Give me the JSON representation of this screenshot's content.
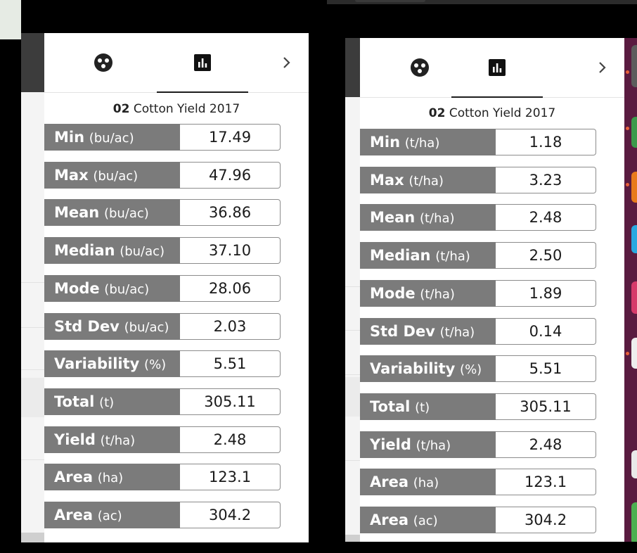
{
  "tabs": {
    "icon_left": "palette-icon",
    "icon_active": "bar-chart-icon",
    "icon_next": "chevron-right-icon"
  },
  "colors": {
    "label_bg": "#7b7b7b",
    "value_border": "#8c8c8c",
    "desktop_bg": "#5a1b40"
  },
  "panel1": {
    "title_num": "02",
    "title_text": "Cotton Yield 2017",
    "rows": [
      {
        "name": "Min",
        "unit": "(bu/ac)",
        "value": "17.49"
      },
      {
        "name": "Max",
        "unit": "(bu/ac)",
        "value": "47.96"
      },
      {
        "name": "Mean",
        "unit": "(bu/ac)",
        "value": "36.86"
      },
      {
        "name": "Median",
        "unit": "(bu/ac)",
        "value": "37.10"
      },
      {
        "name": "Mode",
        "unit": "(bu/ac)",
        "value": "28.06"
      },
      {
        "name": "Std Dev",
        "unit": "(bu/ac)",
        "value": "2.03"
      },
      {
        "name": "Variability",
        "unit": "(%)",
        "value": "5.51"
      },
      {
        "name": "Total",
        "unit": "(t)",
        "value": "305.11"
      },
      {
        "name": "Yield",
        "unit": "(t/ha)",
        "value": "2.48"
      },
      {
        "name": "Area",
        "unit": "(ha)",
        "value": "123.1"
      },
      {
        "name": "Area",
        "unit": "(ac)",
        "value": "304.2"
      }
    ]
  },
  "panel2": {
    "title_num": "02",
    "title_text": "Cotton Yield 2017",
    "rows": [
      {
        "name": "Min",
        "unit": "(t/ha)",
        "value": "1.18"
      },
      {
        "name": "Max",
        "unit": "(t/ha)",
        "value": "3.23"
      },
      {
        "name": "Mean",
        "unit": "(t/ha)",
        "value": "2.48"
      },
      {
        "name": "Median",
        "unit": "(t/ha)",
        "value": "2.50"
      },
      {
        "name": "Mode",
        "unit": "(t/ha)",
        "value": "1.89"
      },
      {
        "name": "Std Dev",
        "unit": "(t/ha)",
        "value": "0.14"
      },
      {
        "name": "Variability",
        "unit": "(%)",
        "value": "5.51"
      },
      {
        "name": "Total",
        "unit": "(t)",
        "value": "305.11"
      },
      {
        "name": "Yield",
        "unit": "(t/ha)",
        "value": "2.48"
      },
      {
        "name": "Area",
        "unit": "(ha)",
        "value": "123.1"
      },
      {
        "name": "Area",
        "unit": "(ac)",
        "value": "304.2"
      }
    ]
  }
}
